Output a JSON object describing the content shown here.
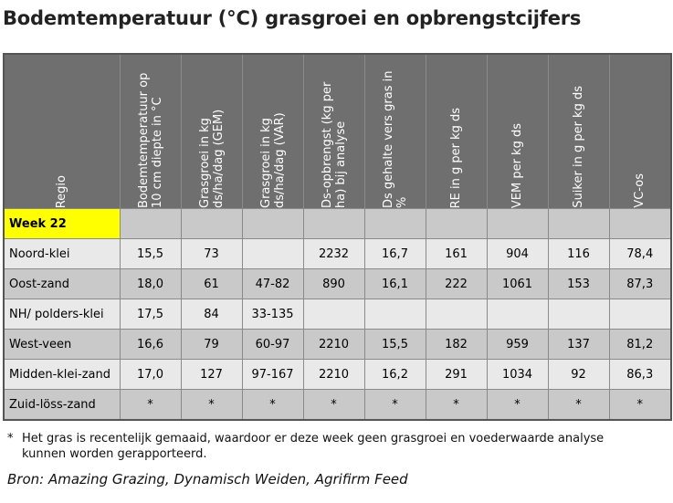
{
  "title": "Bodemtemperatuur (°C) grasgroei en opbrengstcijfers",
  "table": {
    "headers": [
      "Regio",
      "Bodemtemperatuur op 10 cm diepte in °C",
      "Grasgroei in kg ds/ha/dag (GEM)",
      "Grasgroei in kg ds/ha/dag (VAR)",
      "Ds-opbrengst (kg per ha) bij analyse",
      "Ds gehalte vers gras in %",
      "RE in g per kg ds",
      "VEM per kg ds",
      "Suiker in g per kg ds",
      "VC-os"
    ],
    "week_label": "Week 22",
    "rows": [
      [
        "Noord-klei",
        "15,5",
        "73",
        "",
        "2232",
        "16,7",
        "161",
        "904",
        "116",
        "78,4"
      ],
      [
        "Oost-zand",
        "18,0",
        "61",
        "47-82",
        "890",
        "16,1",
        "222",
        "1061",
        "153",
        "87,3"
      ],
      [
        "NH/ polders-klei",
        "17,5",
        "84",
        "33-135",
        "",
        "",
        "",
        "",
        "",
        ""
      ],
      [
        "West-veen",
        "16,6",
        "79",
        "60-97",
        "2210",
        "15,5",
        "182",
        "959",
        "137",
        "81,2"
      ],
      [
        "Midden-klei-zand",
        "17,0",
        "127",
        "97-167",
        "2210",
        "16,2",
        "291",
        "1034",
        "92",
        "86,3"
      ],
      [
        "Zuid-löss-zand",
        "*",
        "*",
        "*",
        "*",
        "*",
        "*",
        "*",
        "*",
        "*"
      ]
    ]
  },
  "footnote": {
    "mark": "*",
    "line1": "Het gras is recentelijk gemaaid, waardoor er deze week geen grasgroei en voederwaarde analyse",
    "line2": "kunnen worden gerapporteerd."
  },
  "source": "Bron: Amazing Grazing, Dynamisch Weiden, Agrifirm Feed",
  "colors": {
    "header_bg": "#6f6f6f",
    "row_dark": "#c9c9c9",
    "row_light": "#e9e9e9",
    "week_highlight": "#ffff00"
  }
}
